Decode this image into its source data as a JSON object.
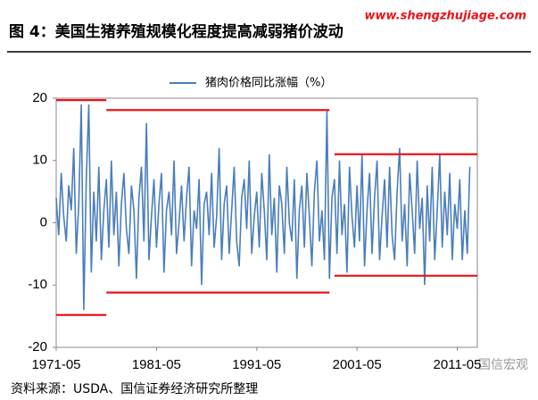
{
  "chart_data": {
    "type": "line",
    "title": "图 4：美国生猪养殖规模化程度提高减弱猪价波动",
    "watermark": "www.shengzhujiage.com",
    "source": "资料来源：USDA、国信证券经济研究所整理",
    "logo": "国信宏观",
    "categories": [
      "1971-05",
      null,
      null,
      null,
      null,
      null,
      null,
      null,
      null,
      null,
      null,
      null,
      null,
      null,
      null,
      null,
      null,
      null,
      null,
      null,
      null,
      null,
      null,
      null,
      null,
      null,
      null,
      null,
      null,
      null,
      null,
      null,
      null,
      null,
      null,
      null,
      null,
      null,
      null,
      null,
      "1981-05",
      null,
      null,
      null,
      null,
      null,
      null,
      null,
      null,
      null,
      null,
      null,
      null,
      null,
      null,
      null,
      null,
      null,
      null,
      null,
      null,
      null,
      null,
      null,
      null,
      null,
      null,
      null,
      null,
      null,
      null,
      null,
      null,
      null,
      null,
      null,
      null,
      null,
      null,
      null,
      "1991-05",
      null,
      null,
      null,
      null,
      null,
      null,
      null,
      null,
      null,
      null,
      null,
      null,
      null,
      null,
      null,
      null,
      null,
      null,
      null,
      null,
      null,
      null,
      null,
      null,
      null,
      null,
      null,
      null,
      null,
      null,
      null,
      null,
      null,
      null,
      null,
      null,
      null,
      null,
      null,
      "2001-05",
      null,
      null,
      null,
      null,
      null,
      null,
      null,
      null,
      null,
      null,
      null,
      null,
      null,
      null,
      null,
      null,
      null,
      null,
      null,
      null,
      null,
      null,
      null,
      null,
      null,
      null,
      null,
      null,
      null,
      null,
      null,
      null,
      null,
      null,
      null,
      null,
      null,
      null,
      null,
      "2011-05",
      null,
      null,
      null,
      null,
      null
    ],
    "series": [
      {
        "name": "猪肉价格同比涨幅（%）",
        "color": "#4a7ebb",
        "values": [
          4,
          -2,
          8,
          1,
          -3,
          6,
          2,
          12,
          -5,
          3,
          19,
          -14,
          7,
          19,
          -8,
          5,
          -3,
          9,
          -6,
          2,
          7,
          -4,
          10,
          -2,
          5,
          -7,
          3,
          8,
          -1,
          -5,
          6,
          2,
          -9,
          4,
          9,
          -3,
          16,
          -6,
          1,
          7,
          -4,
          3,
          8,
          -8,
          2,
          5,
          -2,
          10,
          -5,
          0,
          6,
          -3,
          4,
          9,
          -7,
          2,
          -1,
          7,
          -10,
          3,
          5,
          -2,
          8,
          -4,
          1,
          12,
          -6,
          3,
          6,
          -5,
          2,
          9,
          -3,
          -7,
          4,
          7,
          -1,
          10,
          -5,
          1,
          5,
          -4,
          8,
          2,
          -6,
          11,
          -2,
          4,
          -8,
          6,
          3,
          -5,
          9,
          0,
          -3,
          7,
          -9,
          2,
          6,
          -4,
          8,
          1,
          -7,
          5,
          10,
          -3,
          2,
          -6,
          18,
          -9,
          4,
          7,
          -5,
          10,
          -2,
          3,
          -8,
          9,
          1,
          -4,
          6,
          -3,
          11,
          -7,
          2,
          8,
          -5,
          4,
          10,
          -6,
          1,
          7,
          -4,
          9,
          -2,
          -6,
          5,
          12,
          -3,
          3,
          -7,
          8,
          2,
          -5,
          10,
          -1,
          4,
          -10,
          6,
          -3,
          9,
          -6,
          2,
          11,
          -4,
          5,
          -2,
          8,
          -6,
          3,
          -1,
          7,
          -6,
          2,
          -5,
          9
        ]
      }
    ],
    "bands": [
      {
        "value": 19.7,
        "start": 0,
        "end": 20
      },
      {
        "value": -14.8,
        "start": 0,
        "end": 20
      },
      {
        "value": 18.1,
        "start": 20,
        "end": 109
      },
      {
        "value": -11.2,
        "start": 20,
        "end": 109
      },
      {
        "value": 11,
        "start": 111,
        "end": 168
      },
      {
        "value": -8.5,
        "start": 111,
        "end": 168
      }
    ],
    "band_color": "#e8141a",
    "ylim": [
      -20,
      20
    ],
    "yticks": [
      -20,
      -10,
      0,
      10,
      20
    ]
  }
}
